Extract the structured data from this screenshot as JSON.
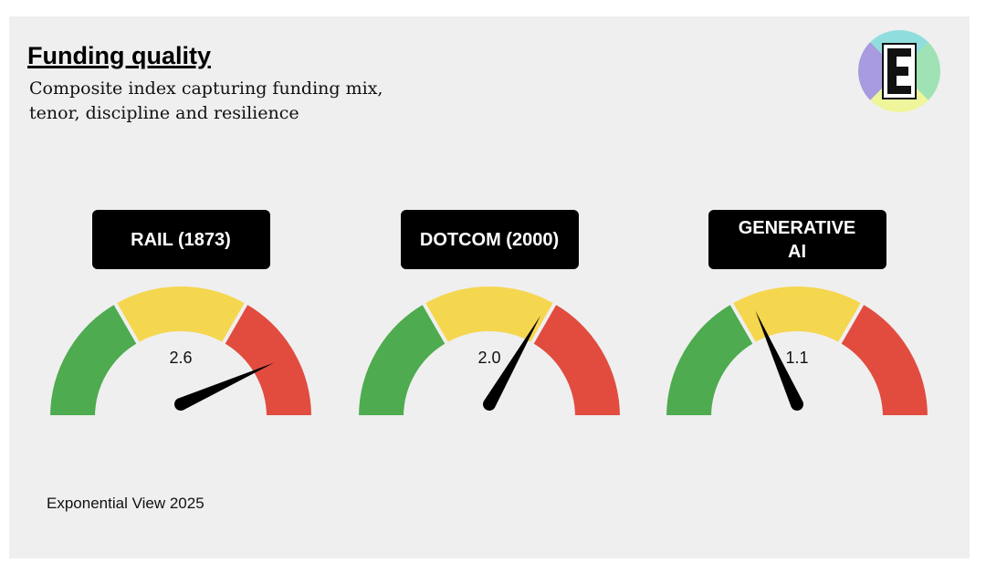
{
  "title": "Funding quality",
  "subtitle": "Composite index capturing funding mix, tenor, discipline and resilience",
  "source": "Exponential View 2025",
  "chart_data": [
    {
      "type": "gauge",
      "title": "RAIL (1873)",
      "values": [
        2.6
      ],
      "ylim": [
        0,
        3
      ],
      "bands": [
        {
          "from": 0,
          "to": 1,
          "color": "#4eab4f"
        },
        {
          "from": 1,
          "to": 2,
          "color": "#f5d64f"
        },
        {
          "from": 2,
          "to": 3,
          "color": "#e14c3f"
        }
      ]
    },
    {
      "type": "gauge",
      "title": "DOTCOM (2000)",
      "values": [
        2.0
      ],
      "value_labels": [
        "2.0"
      ],
      "ylim": [
        0,
        3
      ],
      "bands": [
        {
          "from": 0,
          "to": 1,
          "color": "#4eab4f"
        },
        {
          "from": 1,
          "to": 2,
          "color": "#f5d64f"
        },
        {
          "from": 2,
          "to": 3,
          "color": "#e14c3f"
        }
      ]
    },
    {
      "type": "gauge",
      "title": "GENERATIVE AI",
      "values": [
        1.1
      ],
      "ylim": [
        0,
        3
      ],
      "bands": [
        {
          "from": 0,
          "to": 1,
          "color": "#4eab4f"
        },
        {
          "from": 1,
          "to": 2,
          "color": "#f5d64f"
        },
        {
          "from": 2,
          "to": 3,
          "color": "#e14c3f"
        }
      ]
    }
  ]
}
